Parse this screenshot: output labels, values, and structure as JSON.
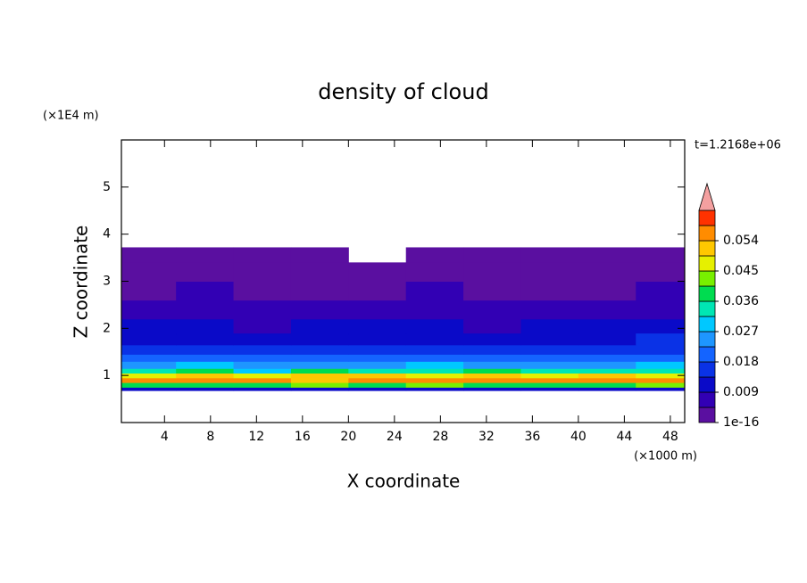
{
  "chart_data": {
    "type": "contour",
    "title": "density of cloud",
    "x_label": "X coordinate",
    "y_label": "Z coordinate",
    "x_unit": "(×1000 m)",
    "y_unit": "(×1E4 m)",
    "annotation": "t=1.2168e+06",
    "xlim": [
      0.25,
      49.25
    ],
    "ylim": [
      0,
      6
    ],
    "xticks": [
      4,
      8,
      12,
      16,
      20,
      24,
      28,
      32,
      36,
      40,
      44,
      48
    ],
    "yticks": [
      1,
      2,
      3,
      4,
      5
    ],
    "x_edges": [
      0.25,
      5,
      10,
      15,
      20,
      25,
      30,
      35,
      40,
      45,
      49.25
    ],
    "z_edges": [
      0.68,
      0.75,
      0.85,
      0.95,
      1.05,
      1.15,
      1.3,
      1.45,
      1.65,
      1.9,
      2.2,
      2.6,
      3.0,
      3.4,
      3.72
    ],
    "values": [
      [
        0.011,
        0.012,
        0.01,
        0.011,
        0.012,
        0.011,
        0.012,
        0.01,
        0.011,
        0.012
      ],
      [
        0.038,
        0.04,
        0.036,
        0.041,
        0.039,
        0.042,
        0.04,
        0.037,
        0.039,
        0.041
      ],
      [
        0.056,
        0.054,
        0.057,
        0.053,
        0.055,
        0.058,
        0.056,
        0.054,
        0.057,
        0.055
      ],
      [
        0.049,
        0.051,
        0.047,
        0.05,
        0.052,
        0.048,
        0.051,
        0.049,
        0.05,
        0.047
      ],
      [
        0.034,
        0.036,
        0.031,
        0.037,
        0.035,
        0.033,
        0.036,
        0.034,
        0.032,
        0.035
      ],
      [
        0.025,
        0.027,
        0.023,
        0.026,
        0.024,
        0.028,
        0.025,
        0.026,
        0.023,
        0.027
      ],
      [
        0.02,
        0.019,
        0.021,
        0.018,
        0.02,
        0.022,
        0.019,
        0.021,
        0.02,
        0.018
      ],
      [
        0.016,
        0.017,
        0.015,
        0.014,
        0.016,
        0.017,
        0.015,
        0.016,
        0.017,
        0.015
      ],
      [
        0.012,
        0.013,
        0.011,
        0.012,
        0.013,
        0.012,
        0.011,
        0.013,
        0.012,
        0.014
      ],
      [
        0.009,
        0.01,
        0.008,
        0.009,
        0.01,
        0.009,
        0.008,
        0.01,
        0.009,
        0.01
      ],
      [
        0.006,
        0.007,
        0.006,
        0.005,
        0.007,
        0.006,
        0.007,
        0.006,
        0.005,
        0.007
      ],
      [
        0.004,
        0.005,
        0.004,
        0.003,
        0.004,
        0.005,
        0.004,
        0.003,
        0.004,
        0.005
      ],
      [
        0.002,
        0.003,
        0.002,
        0.002,
        0.003,
        0.002,
        0.003,
        0.002,
        0.002,
        0.003
      ],
      [
        0.001,
        0.001,
        0.001,
        0.001,
        null,
        0.001,
        0.001,
        0.001,
        0.001,
        0.001
      ]
    ],
    "levels": [
      1e-16,
      0.0045,
      0.009,
      0.0135,
      0.018,
      0.0225,
      0.027,
      0.0315,
      0.036,
      0.0405,
      0.045,
      0.0495,
      0.054,
      0.0585,
      0.063
    ],
    "colors": [
      "#5a0fa0",
      "#3200b4",
      "#0a0ac8",
      "#0a32e6",
      "#1464ff",
      "#1e96ff",
      "#00c8ff",
      "#00e6b4",
      "#00dc50",
      "#78f000",
      "#e6f000",
      "#ffc800",
      "#ff8c00",
      "#ff3200"
    ],
    "extend_color": "#f4a0a0",
    "colorbar_ticks": [
      {
        "value": 1e-16,
        "label": "1e-16"
      },
      0.009,
      0.018,
      0.027,
      0.036,
      0.045,
      0.054
    ]
  }
}
